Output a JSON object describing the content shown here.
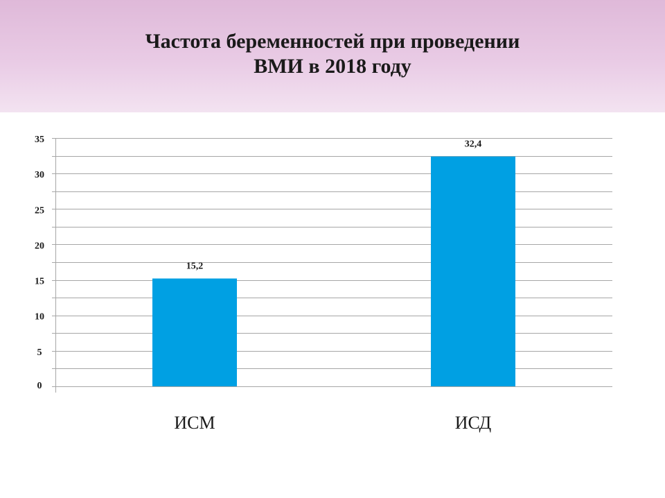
{
  "slide": {
    "title_line1": "Частота беременностей при проведении",
    "title_line2": "ВМИ в 2018 году"
  },
  "chart_data": {
    "type": "bar",
    "categories": [
      "ИСМ",
      "ИСД"
    ],
    "values": [
      15.2,
      32.4
    ],
    "value_labels": [
      "15,2",
      "32,4"
    ],
    "ylim": [
      0,
      35
    ],
    "yticks": [
      0,
      5,
      10,
      15,
      20,
      25,
      30,
      35
    ],
    "grid": true,
    "bar_color": "#00a0e3",
    "grid_color": "#a6a6a6"
  }
}
